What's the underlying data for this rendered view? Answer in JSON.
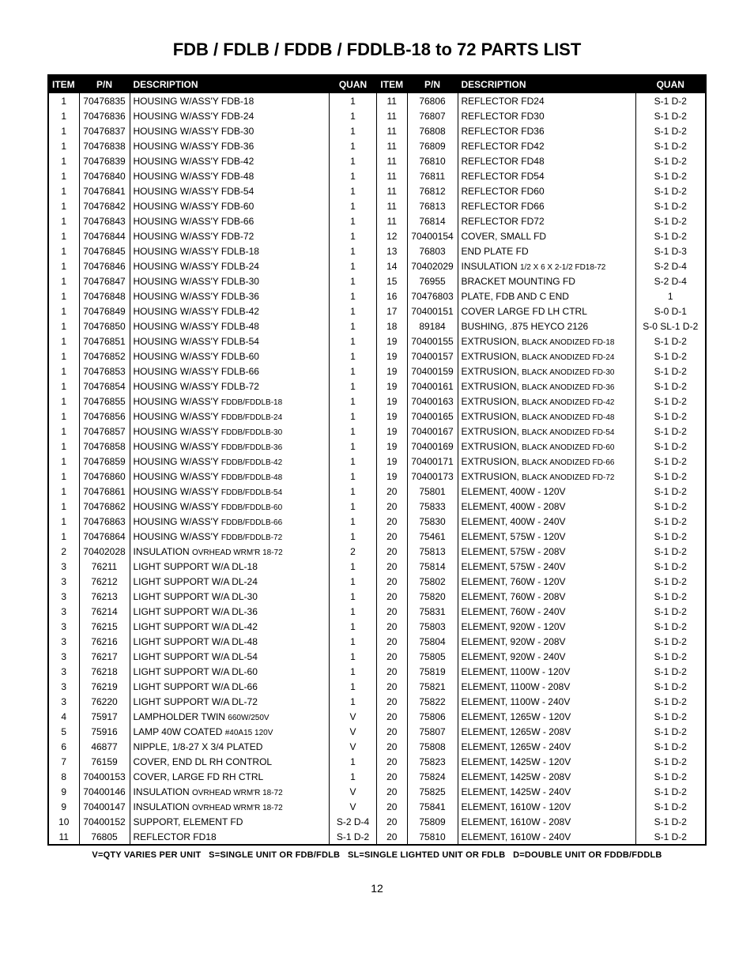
{
  "title": "FDB / FDLB / FDDB / FDDLB-18 to 72 PARTS LIST",
  "columns": {
    "item": "ITEM",
    "pn": "P/N",
    "desc": "DESCRIPTION",
    "quan": "QUAN"
  },
  "footer": "V=QTY VARIES PER UNIT   S=SINGLE UNIT OR FDB/FDLB   SL=SINGLE LIGHTED UNIT OR FDLB   D=DOUBLE UNIT OR FDDB/FDDLB",
  "page": "12",
  "left": [
    {
      "i": "1",
      "p": "70476835",
      "d": "HOUSING W/ASS'Y FDB-18",
      "q": "1"
    },
    {
      "i": "1",
      "p": "70476836",
      "d": "HOUSING W/ASS'Y FDB-24",
      "q": "1"
    },
    {
      "i": "1",
      "p": "70476837",
      "d": "HOUSING W/ASS'Y FDB-30",
      "q": "1"
    },
    {
      "i": "1",
      "p": "70476838",
      "d": "HOUSING W/ASS'Y FDB-36",
      "q": "1"
    },
    {
      "i": "1",
      "p": "70476839",
      "d": "HOUSING W/ASS'Y FDB-42",
      "q": "1"
    },
    {
      "i": "1",
      "p": "70476840",
      "d": "HOUSING W/ASS'Y FDB-48",
      "q": "1"
    },
    {
      "i": "1",
      "p": "70476841",
      "d": "HOUSING W/ASS'Y FDB-54",
      "q": "1"
    },
    {
      "i": "1",
      "p": "70476842",
      "d": "HOUSING W/ASS'Y FDB-60",
      "q": "1"
    },
    {
      "i": "1",
      "p": "70476843",
      "d": "HOUSING W/ASS'Y FDB-66",
      "q": "1"
    },
    {
      "i": "1",
      "p": "70476844",
      "d": "HOUSING W/ASS'Y FDB-72",
      "q": "1"
    },
    {
      "i": "1",
      "p": "70476845",
      "d": "HOUSING W/ASS'Y FDLB-18",
      "q": "1"
    },
    {
      "i": "1",
      "p": "70476846",
      "d": "HOUSING W/ASS'Y FDLB-24",
      "q": "1"
    },
    {
      "i": "1",
      "p": "70476847",
      "d": "HOUSING W/ASS'Y FDLB-30",
      "q": "1"
    },
    {
      "i": "1",
      "p": "70476848",
      "d": "HOUSING W/ASS'Y FDLB-36",
      "q": "1"
    },
    {
      "i": "1",
      "p": "70476849",
      "d": "HOUSING W/ASS'Y FDLB-42",
      "q": "1"
    },
    {
      "i": "1",
      "p": "70476850",
      "d": "HOUSING W/ASS'Y FDLB-48",
      "q": "1"
    },
    {
      "i": "1",
      "p": "70476851",
      "d": "HOUSING W/ASS'Y FDLB-54",
      "q": "1"
    },
    {
      "i": "1",
      "p": "70476852",
      "d": "HOUSING W/ASS'Y FDLB-60",
      "q": "1"
    },
    {
      "i": "1",
      "p": "70476853",
      "d": "HOUSING W/ASS'Y FDLB-66",
      "q": "1"
    },
    {
      "i": "1",
      "p": "70476854",
      "d": "HOUSING W/ASS'Y FDLB-72",
      "q": "1"
    },
    {
      "i": "1",
      "p": "70476855",
      "d": "HOUSING W/ASS'Y ",
      "sub": "FDDB/FDDLB-18",
      "q": "1"
    },
    {
      "i": "1",
      "p": "70476856",
      "d": "HOUSING W/ASS'Y ",
      "sub": "FDDB/FDDLB-24",
      "q": "1"
    },
    {
      "i": "1",
      "p": "70476857",
      "d": "HOUSING W/ASS'Y ",
      "sub": "FDDB/FDDLB-30",
      "q": "1"
    },
    {
      "i": "1",
      "p": "70476858",
      "d": "HOUSING W/ASS'Y ",
      "sub": "FDDB/FDDLB-36",
      "q": "1"
    },
    {
      "i": "1",
      "p": "70476859",
      "d": "HOUSING W/ASS'Y ",
      "sub": "FDDB/FDDLB-42",
      "q": "1"
    },
    {
      "i": "1",
      "p": "70476860",
      "d": "HOUSING W/ASS'Y ",
      "sub": "FDDB/FDDLB-48",
      "q": "1"
    },
    {
      "i": "1",
      "p": "70476861",
      "d": "HOUSING W/ASS'Y ",
      "sub": "FDDB/FDDLB-54",
      "q": "1"
    },
    {
      "i": "1",
      "p": "70476862",
      "d": "HOUSING W/ASS'Y ",
      "sub": "FDDB/FDDLB-60",
      "q": "1"
    },
    {
      "i": "1",
      "p": "70476863",
      "d": "HOUSING W/ASS'Y ",
      "sub": "FDDB/FDDLB-66",
      "q": "1"
    },
    {
      "i": "1",
      "p": "70476864",
      "d": "HOUSING W/ASS'Y ",
      "sub": "FDDB/FDDLB-72",
      "q": "1"
    },
    {
      "i": "2",
      "p": "70402028",
      "d": "INSULATION ",
      "sub": "OVRHEAD WRM'R 18-72",
      "q": "2"
    },
    {
      "i": "3",
      "p": "76211",
      "d": "LIGHT SUPPORT W/A DL-18",
      "q": "1"
    },
    {
      "i": "3",
      "p": "76212",
      "d": "LIGHT SUPPORT W/A DL-24",
      "q": "1"
    },
    {
      "i": "3",
      "p": "76213",
      "d": "LIGHT SUPPORT W/A DL-30",
      "q": "1"
    },
    {
      "i": "3",
      "p": "76214",
      "d": "LIGHT SUPPORT W/A DL-36",
      "q": "1"
    },
    {
      "i": "3",
      "p": "76215",
      "d": "LIGHT SUPPORT W/A DL-42",
      "q": "1"
    },
    {
      "i": "3",
      "p": "76216",
      "d": "LIGHT SUPPORT W/A DL-48",
      "q": "1"
    },
    {
      "i": "3",
      "p": "76217",
      "d": "LIGHT SUPPORT W/A DL-54",
      "q": "1"
    },
    {
      "i": "3",
      "p": "76218",
      "d": "LIGHT SUPPORT W/A DL-60",
      "q": "1"
    },
    {
      "i": "3",
      "p": "76219",
      "d": "LIGHT SUPPORT W/A DL-66",
      "q": "1"
    },
    {
      "i": "3",
      "p": "76220",
      "d": "LIGHT SUPPORT W/A DL-72",
      "q": "1"
    },
    {
      "i": "4",
      "p": "75917",
      "d": "LAMPHOLDER TWIN ",
      "sub": "660W/250V",
      "q": "V"
    },
    {
      "i": "5",
      "p": "75916",
      "d": "LAMP 40W COATED ",
      "sub": "#40A15 120V",
      "q": "V"
    },
    {
      "i": "6",
      "p": "46877",
      "d": "NIPPLE, 1/8-27 X 3/4 PLATED",
      "q": "V"
    },
    {
      "i": "7",
      "p": "76159",
      "d": "COVER, END  DL RH CONTROL",
      "q": "1"
    },
    {
      "i": "8",
      "p": "70400153",
      "d": "COVER, LARGE FD RH CTRL",
      "q": "1"
    },
    {
      "i": "9",
      "p": "70400146",
      "d": "INSULATION ",
      "sub": "OVRHEAD WRM'R 18-72",
      "q": "V"
    },
    {
      "i": "9",
      "p": "70400147",
      "d": "INSULATION ",
      "sub": "OVRHEAD WRM'R 18-72",
      "q": "V"
    },
    {
      "i": "10",
      "p": "70400152",
      "d": "SUPPORT, ELEMENT FD",
      "q": "S-2  D-4"
    },
    {
      "i": "11",
      "p": "76805",
      "d": "REFLECTOR FD18",
      "q": "S-1  D-2"
    }
  ],
  "right": [
    {
      "i": "11",
      "p": "76806",
      "d": "REFLECTOR FD24",
      "q": "S-1  D-2"
    },
    {
      "i": "11",
      "p": "76807",
      "d": "REFLECTOR FD30",
      "q": "S-1  D-2"
    },
    {
      "i": "11",
      "p": "76808",
      "d": "REFLECTOR FD36",
      "q": "S-1  D-2"
    },
    {
      "i": "11",
      "p": "76809",
      "d": "REFLECTOR FD42",
      "q": "S-1  D-2"
    },
    {
      "i": "11",
      "p": "76810",
      "d": "REFLECTOR FD48",
      "q": "S-1  D-2"
    },
    {
      "i": "11",
      "p": "76811",
      "d": "REFLECTOR FD54",
      "q": "S-1  D-2"
    },
    {
      "i": "11",
      "p": "76812",
      "d": "REFLECTOR FD60",
      "q": "S-1  D-2"
    },
    {
      "i": "11",
      "p": "76813",
      "d": "REFLECTOR FD66",
      "q": "S-1  D-2"
    },
    {
      "i": "11",
      "p": "76814",
      "d": "REFLECTOR FD72",
      "q": "S-1  D-2"
    },
    {
      "i": "12",
      "p": "70400154",
      "d": "COVER, SMALL FD",
      "q": "S-1  D-2"
    },
    {
      "i": "13",
      "p": "76803",
      "d": "END PLATE FD",
      "q": "S-1  D-3"
    },
    {
      "i": "14",
      "p": "70402029",
      "d": "INSULATION ",
      "sub": "1/2 X 6 X 2-1/2 FD18-72",
      "q": "S-2  D-4"
    },
    {
      "i": "15",
      "p": "76955",
      "d": "BRACKET MOUNTING FD",
      "q": "S-2  D-4"
    },
    {
      "i": "16",
      "p": "70476803",
      "d": "PLATE, FDB AND C END",
      "q": "1"
    },
    {
      "i": "17",
      "p": "70400151",
      "d": "COVER LARGE FD LH CTRL",
      "q": "S-0  D-1"
    },
    {
      "i": "18",
      "p": "89184",
      "d": "BUSHING, .875 HEYCO 2126",
      "q": "S-0  SL-1  D-2"
    },
    {
      "i": "19",
      "p": "70400155",
      "d": "EXTRUSION, ",
      "sub": "BLACK ANODIZED FD-18",
      "q": "S-1  D-2"
    },
    {
      "i": "19",
      "p": "70400157",
      "d": "EXTRUSION, ",
      "sub": "BLACK ANODIZED FD-24",
      "q": "S-1  D-2"
    },
    {
      "i": "19",
      "p": "70400159",
      "d": "EXTRUSION, ",
      "sub": "BLACK ANODIZED FD-30",
      "q": "S-1  D-2"
    },
    {
      "i": "19",
      "p": "70400161",
      "d": "EXTRUSION, ",
      "sub": "BLACK ANODIZED FD-36",
      "q": "S-1  D-2"
    },
    {
      "i": "19",
      "p": "70400163",
      "d": "EXTRUSION, ",
      "sub": "BLACK ANODIZED FD-42",
      "q": "S-1  D-2"
    },
    {
      "i": "19",
      "p": "70400165",
      "d": "EXTRUSION, ",
      "sub": "BLACK ANODIZED FD-48",
      "q": "S-1  D-2"
    },
    {
      "i": "19",
      "p": "70400167",
      "d": "EXTRUSION, ",
      "sub": "BLACK ANODIZED FD-54",
      "q": "S-1  D-2"
    },
    {
      "i": "19",
      "p": "70400169",
      "d": "EXTRUSION, ",
      "sub": "BLACK ANODIZED FD-60",
      "q": "S-1  D-2"
    },
    {
      "i": "19",
      "p": "70400171",
      "d": "EXTRUSION, ",
      "sub": "BLACK ANODIZED FD-66",
      "q": "S-1  D-2"
    },
    {
      "i": "19",
      "p": "70400173",
      "d": "EXTRUSION, ",
      "sub": "BLACK ANODIZED FD-72",
      "q": "S-1  D-2"
    },
    {
      "i": "20",
      "p": "75801",
      "d": "ELEMENT, 400W - 120V",
      "q": "S-1  D-2"
    },
    {
      "i": "20",
      "p": "75833",
      "d": "ELEMENT, 400W - 208V",
      "q": "S-1  D-2"
    },
    {
      "i": "20",
      "p": "75830",
      "d": "ELEMENT, 400W - 240V",
      "q": "S-1  D-2"
    },
    {
      "i": "20",
      "p": "75461",
      "d": "ELEMENT, 575W - 120V",
      "q": "S-1  D-2"
    },
    {
      "i": "20",
      "p": "75813",
      "d": "ELEMENT, 575W - 208V",
      "q": "S-1  D-2"
    },
    {
      "i": "20",
      "p": "75814",
      "d": "ELEMENT, 575W - 240V",
      "q": "S-1  D-2"
    },
    {
      "i": "20",
      "p": "75802",
      "d": "ELEMENT, 760W - 120V",
      "q": "S-1  D-2"
    },
    {
      "i": "20",
      "p": "75820",
      "d": "ELEMENT, 760W - 208V",
      "q": "S-1  D-2"
    },
    {
      "i": "20",
      "p": "75831",
      "d": "ELEMENT, 760W - 240V",
      "q": "S-1  D-2"
    },
    {
      "i": "20",
      "p": "75803",
      "d": "ELEMENT, 920W - 120V",
      "q": "S-1  D-2"
    },
    {
      "i": "20",
      "p": "75804",
      "d": "ELEMENT, 920W - 208V",
      "q": "S-1  D-2"
    },
    {
      "i": "20",
      "p": "75805",
      "d": "ELEMENT, 920W - 240V",
      "q": "S-1  D-2"
    },
    {
      "i": "20",
      "p": "75819",
      "d": "ELEMENT, 1100W - 120V",
      "q": "S-1  D-2"
    },
    {
      "i": "20",
      "p": "75821",
      "d": "ELEMENT, 1100W - 208V",
      "q": "S-1  D-2"
    },
    {
      "i": "20",
      "p": "75822",
      "d": "ELEMENT, 1100W - 240V",
      "q": "S-1  D-2"
    },
    {
      "i": "20",
      "p": "75806",
      "d": "ELEMENT, 1265W - 120V",
      "q": "S-1  D-2"
    },
    {
      "i": "20",
      "p": "75807",
      "d": "ELEMENT, 1265W - 208V",
      "q": "S-1  D-2"
    },
    {
      "i": "20",
      "p": "75808",
      "d": "ELEMENT, 1265W - 240V",
      "q": "S-1  D-2"
    },
    {
      "i": "20",
      "p": "75823",
      "d": "ELEMENT, 1425W - 120V",
      "q": "S-1  D-2"
    },
    {
      "i": "20",
      "p": "75824",
      "d": "ELEMENT, 1425W - 208V",
      "q": "S-1  D-2"
    },
    {
      "i": "20",
      "p": "75825",
      "d": "ELEMENT, 1425W - 240V",
      "q": "S-1  D-2"
    },
    {
      "i": "20",
      "p": "75841",
      "d": "ELEMENT, 1610W - 120V",
      "q": "S-1  D-2"
    },
    {
      "i": "20",
      "p": "75809",
      "d": "ELEMENT, 1610W - 208V",
      "q": "S-1  D-2"
    },
    {
      "i": "20",
      "p": "75810",
      "d": "ELEMENT, 1610W - 240V",
      "q": "S-1  D-2"
    }
  ]
}
